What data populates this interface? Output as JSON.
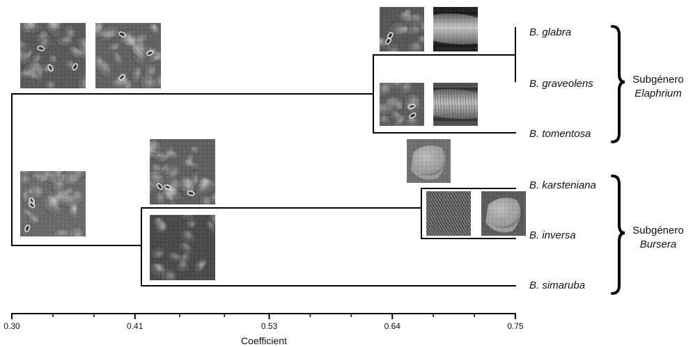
{
  "axis": {
    "title": "Coefficient",
    "min": 0.3,
    "max": 0.75,
    "ticks": [
      {
        "value": 0.3,
        "label": "0.30"
      },
      {
        "value": 0.41,
        "label": "0.41"
      },
      {
        "value": 0.53,
        "label": "0.53"
      },
      {
        "value": 0.64,
        "label": "0.64"
      },
      {
        "value": 0.75,
        "label": "0.75"
      }
    ],
    "minor_ticks_between": 2
  },
  "taxa": [
    {
      "id": "glabra",
      "label": "B. glabra"
    },
    {
      "id": "graveolens",
      "label": "B. graveolens"
    },
    {
      "id": "tomentosa",
      "label": "B. tomentosa"
    },
    {
      "id": "karsteniana",
      "label": "B. karsteniana"
    },
    {
      "id": "inversa",
      "label": "B. inversa"
    },
    {
      "id": "simaruba",
      "label": "B. simaruba"
    }
  ],
  "clusters": [
    {
      "id": "glabra-graveolens",
      "members": [
        "glabra",
        "graveolens"
      ],
      "coefficient": 0.75
    },
    {
      "id": "karsteniana-inversa",
      "members": [
        "karsteniana",
        "inversa"
      ],
      "coefficient": 0.665
    },
    {
      "id": "elaphrium",
      "members": [
        "glabra-graveolens",
        "tomentosa"
      ],
      "coefficient": 0.62
    },
    {
      "id": "bursera",
      "members": [
        "karsteniana-inversa",
        "simaruba"
      ],
      "coefficient": 0.41
    },
    {
      "id": "root",
      "members": [
        "elaphrium",
        "bursera"
      ],
      "coefficient": 0.3
    }
  ],
  "groups": [
    {
      "id": "elaphrium",
      "line1": "Subgénero",
      "line2": "Elaphrium"
    },
    {
      "id": "bursera",
      "line1": "Subgénero",
      "line2": "Bursera"
    }
  ],
  "images": [
    {
      "id": "sem-root-upper-1",
      "tone": "#5a5a5a"
    },
    {
      "id": "sem-root-upper-2",
      "tone": "#626262"
    },
    {
      "id": "sem-root-lower",
      "tone": "#6a6a6a"
    },
    {
      "id": "sem-bursera-upper",
      "tone": "#5f5f5f"
    },
    {
      "id": "sem-bursera-lower",
      "tone": "#4a4a4a"
    },
    {
      "id": "sem-glabra-leaf",
      "tone": "#575757"
    },
    {
      "id": "sem-glabra-fibre",
      "tone": "#3a3a3a"
    },
    {
      "id": "sem-graveolens-leaf",
      "tone": "#5c5c5c"
    },
    {
      "id": "sem-graveolens-fibre",
      "tone": "#676767"
    },
    {
      "id": "sem-karsteniana-leaf",
      "tone": "#707070"
    },
    {
      "id": "sem-inversa-leaf",
      "tone": "#4e4e4e"
    },
    {
      "id": "sem-inversa-fibre",
      "tone": "#5b5b5b"
    }
  ]
}
